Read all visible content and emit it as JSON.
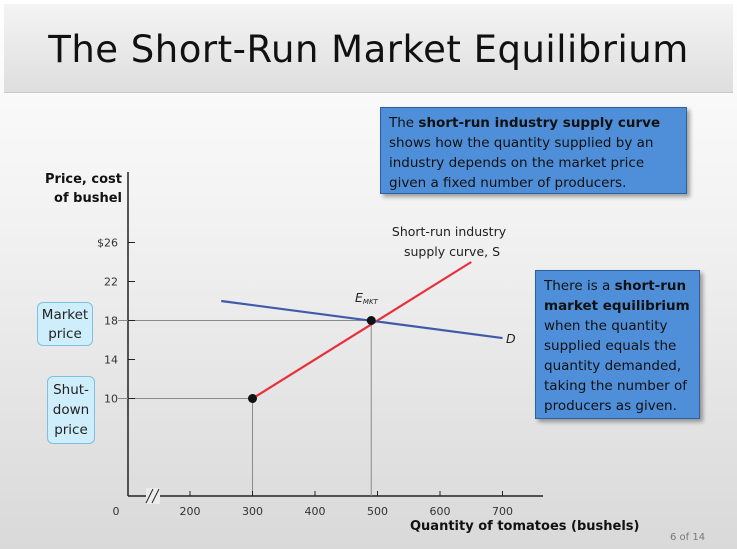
{
  "title": "The Short-Run Market Equilibrium",
  "callouts": {
    "supply_def": {
      "pre": "The ",
      "bold": "short-run industry supply curve",
      "post": " shows how the quantity supplied by an industry depends on the market price given a fixed number of producers."
    },
    "equilibrium_def": {
      "pre": "There is a ",
      "bold": "short-run market equilibrium",
      "post": " when the quantity supplied equals the quantity demanded, taking the number of producers as given."
    }
  },
  "tags": {
    "market_price": "Market price",
    "shutdown_price": "Shut-down price"
  },
  "page_number": "6 of 14",
  "chart_data": {
    "type": "line",
    "xlabel": "Quantity of tomatoes (bushels)",
    "ylabel": "Price, cost of bushel",
    "x_ticks": [
      "0",
      "200",
      "300",
      "400",
      "500",
      "600",
      "700"
    ],
    "y_ticks": [
      "$26",
      "22",
      "18",
      "14",
      "10"
    ],
    "x_break": true,
    "xlim": [
      150,
      750
    ],
    "ylim": [
      0,
      30
    ],
    "series": [
      {
        "name": "Short-run industry supply curve, S",
        "color": "#e8303a",
        "x": [
          300,
          650
        ],
        "y": [
          10,
          24
        ]
      },
      {
        "name": "D",
        "color": "#3f5aa8",
        "x": [
          250,
          700
        ],
        "y": [
          20,
          16.2
        ]
      }
    ],
    "points": [
      {
        "label": "E_MKT",
        "x": 490,
        "y": 18
      },
      {
        "label": "",
        "x": 300,
        "y": 10
      }
    ],
    "guides": [
      {
        "y": 18,
        "x": 490
      },
      {
        "y": 10,
        "x": 300
      }
    ],
    "annotations": {
      "supply_line1": "Short-run industry",
      "supply_line2": "supply curve, S",
      "demand": "D",
      "equilibrium_main": "E",
      "equilibrium_sub": "MKT"
    },
    "colors": {
      "supply": "#e8303a",
      "demand": "#3f5aa8",
      "callout": "#4f8fd9",
      "tag": "#cfeefc"
    }
  }
}
